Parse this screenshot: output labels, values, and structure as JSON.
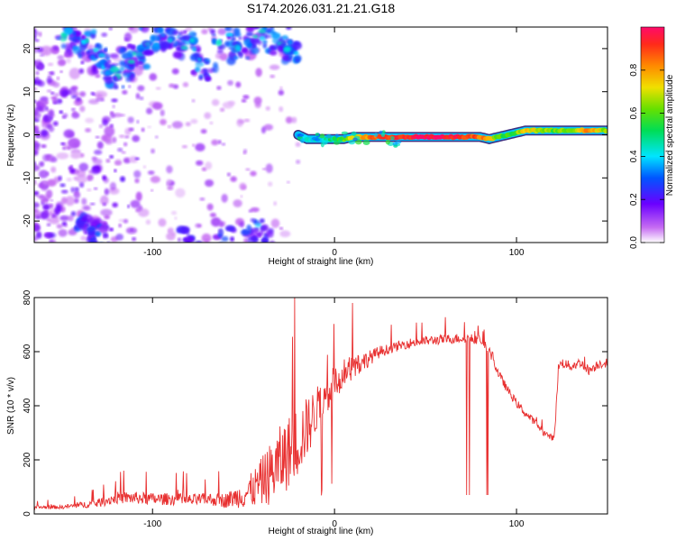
{
  "figure": {
    "title": "S174.2026.031.21.21.G18"
  },
  "chart_data": [
    {
      "type": "heatmap",
      "title": "S174.2026.031.21.21.G18",
      "xlabel": "Height of straight line (km)",
      "ylabel": "Frequency (Hz)",
      "xlim": [
        -165,
        150
      ],
      "ylim": [
        -25,
        25
      ],
      "xticks": [
        -100,
        0,
        100
      ],
      "xtick_labels": [
        "-100",
        "0",
        "100"
      ],
      "yticks": [
        -20,
        -10,
        0,
        10,
        20
      ],
      "ytick_labels": [
        "-20",
        "-10",
        "0",
        "10",
        "20"
      ],
      "colorbar": {
        "label": "Normalized spectral amplitude",
        "range": [
          0,
          1
        ],
        "ticks": [
          0.0,
          0.2,
          0.4,
          0.6,
          0.8
        ],
        "tick_labels": [
          "0.0",
          "0.2",
          "0.4",
          "0.6",
          "0.8"
        ]
      },
      "signal_track": {
        "x": [
          -20,
          -15,
          -10,
          -5,
          0,
          5,
          10,
          20,
          40,
          60,
          70,
          80,
          85,
          90,
          95,
          100,
          105,
          110,
          120,
          130,
          140,
          150
        ],
        "y": [
          0,
          -1,
          -1,
          -1,
          -1,
          -1,
          -0.5,
          -0.5,
          -0.5,
          -0.5,
          -0.5,
          -0.5,
          -1,
          -0.5,
          0,
          0.5,
          1,
          1,
          1,
          1,
          1,
          1
        ],
        "amplitude": [
          0.3,
          0.4,
          0.4,
          0.45,
          0.5,
          0.6,
          0.7,
          0.85,
          0.95,
          1.0,
          0.9,
          0.85,
          0.8,
          0.6,
          0.55,
          0.6,
          0.75,
          0.7,
          0.6,
          0.65,
          0.85,
          0.6
        ]
      }
    },
    {
      "type": "line",
      "xlabel": "Height of straight line (km)",
      "ylabel": "SNR (10 * v/v)",
      "xlim": [
        -165,
        150
      ],
      "ylim": [
        0,
        800
      ],
      "xticks": [
        -100,
        0,
        100
      ],
      "xtick_labels": [
        "-100",
        "0",
        "100"
      ],
      "yticks": [
        0,
        200,
        400,
        600,
        800
      ],
      "ytick_labels": [
        "0",
        "200",
        "400",
        "600",
        "800"
      ],
      "series": [
        {
          "name": "SNR",
          "color": "#e83030",
          "x": [
            -165,
            -150,
            -130,
            -120,
            -110,
            -100,
            -90,
            -80,
            -70,
            -60,
            -55,
            -50,
            -45,
            -40,
            -35,
            -30,
            -25,
            -20,
            -15,
            -10,
            -5,
            0,
            5,
            10,
            15,
            20,
            25,
            30,
            40,
            50,
            60,
            70,
            80,
            85,
            90,
            95,
            100,
            105,
            110,
            115,
            120,
            121,
            123,
            125,
            130,
            135,
            140,
            145,
            150
          ],
          "values": [
            25,
            25,
            40,
            60,
            60,
            55,
            55,
            50,
            55,
            50,
            60,
            70,
            90,
            120,
            150,
            190,
            230,
            270,
            320,
            380,
            430,
            480,
            520,
            545,
            560,
            580,
            600,
            610,
            630,
            640,
            645,
            650,
            645,
            600,
            520,
            460,
            410,
            370,
            340,
            300,
            280,
            300,
            540,
            560,
            545,
            560,
            530,
            555,
            560
          ],
          "noise": [
            15,
            15,
            35,
            50,
            50,
            50,
            50,
            50,
            50,
            60,
            80,
            110,
            150,
            200,
            260,
            300,
            300,
            300,
            250,
            200,
            170,
            150,
            120,
            100,
            80,
            60,
            50,
            40,
            40,
            40,
            40,
            40,
            40,
            40,
            35,
            35,
            35,
            30,
            30,
            25,
            25,
            25,
            40,
            40,
            40,
            40,
            40,
            40,
            40
          ]
        }
      ]
    }
  ]
}
